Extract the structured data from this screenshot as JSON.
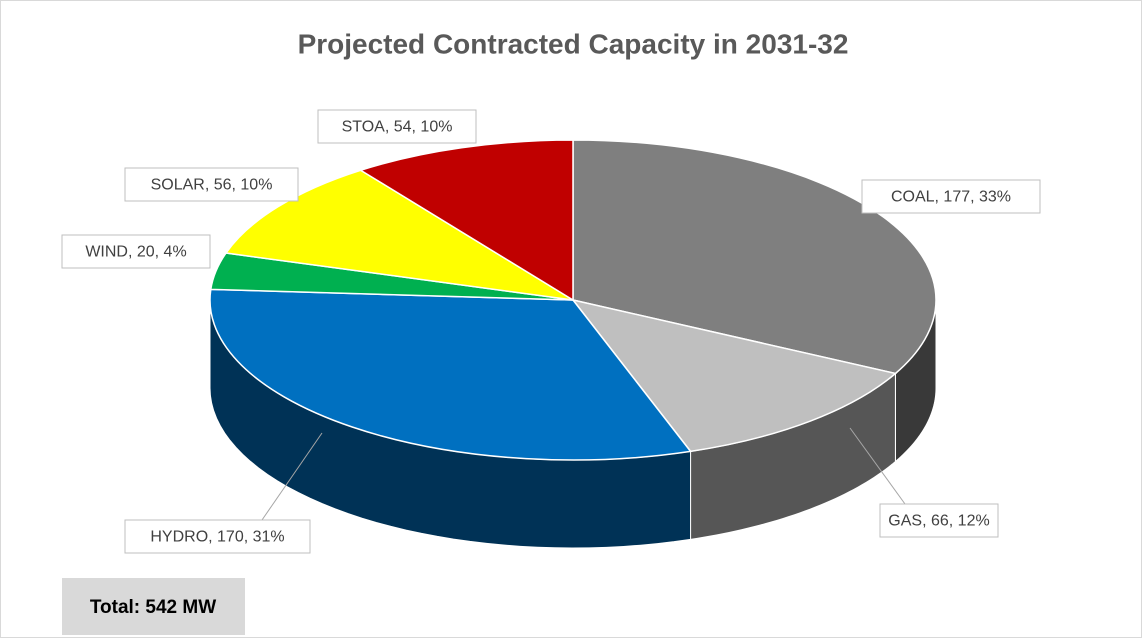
{
  "chart_data": {
    "type": "pie3d",
    "title": "Projected Contracted Capacity in 2031-32",
    "categories": [
      "COAL",
      "GAS",
      "HYDRO",
      "WIND",
      "SOLAR",
      "STOA"
    ],
    "values": [
      177,
      66,
      170,
      20,
      56,
      54
    ],
    "value_labels": [
      "COAL, 177, 33%",
      "GAS, 66, 12%",
      "HYDRO, 170, 31%",
      "WIND, 20, 4%",
      "SOLAR, 56, 10%",
      "STOA, 54, 10%"
    ],
    "colors": [
      "#7f7f7f",
      "#bfbfbf",
      "#0070c0",
      "#00b050",
      "#ffff00",
      "#c00000"
    ],
    "annotation": "Total: 542 MW"
  }
}
